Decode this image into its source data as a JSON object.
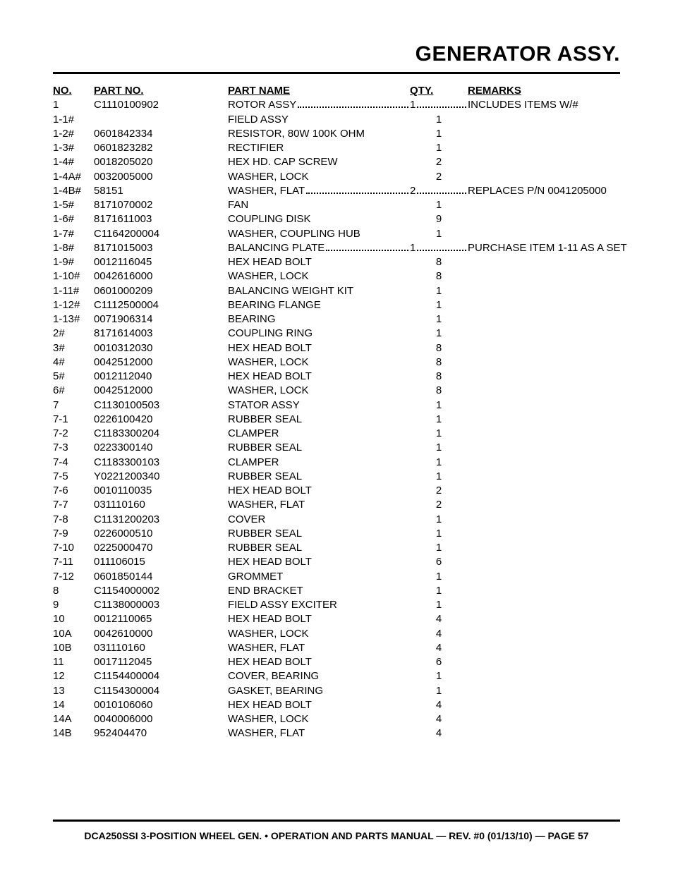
{
  "title": "GENERATOR ASSY.",
  "headers": {
    "no": "NO.",
    "partNo": "PART NO.",
    "partName": "PART NAME",
    "qty": "QTY.",
    "remarks": "REMARKS"
  },
  "footer": "DCA250SSI 3-POSITION WHEEL GEN. • OPERATION AND PARTS MANUAL — REV. #0 (01/13/10) — PAGE 57",
  "rows": [
    {
      "no": "1",
      "partNo": "C1110100902",
      "name": "ROTOR ASSY",
      "qty": "1",
      "remarks": "INCLUDES ITEMS W/#",
      "leader": true
    },
    {
      "no": "1-1#",
      "partNo": "",
      "name": "FIELD ASSY",
      "qty": "1",
      "remarks": ""
    },
    {
      "no": "1-2#",
      "partNo": "0601842334",
      "name": "RESISTOR, 80W 100K OHM",
      "qty": "1",
      "remarks": ""
    },
    {
      "no": "1-3#",
      "partNo": "0601823282",
      "name": "RECTIFIER",
      "qty": "1",
      "remarks": ""
    },
    {
      "no": "1-4#",
      "partNo": "0018205020",
      "name": "HEX HD. CAP SCREW",
      "qty": "2",
      "remarks": ""
    },
    {
      "no": "1-4A#",
      "partNo": "0032005000",
      "name": "WASHER, LOCK",
      "qty": "2",
      "remarks": ""
    },
    {
      "no": "1-4B#",
      "partNo": "58151",
      "name": "WASHER, FLAT",
      "qty": "2",
      "remarks": "REPLACES P/N 0041205000",
      "leader": true
    },
    {
      "no": "1-5#",
      "partNo": "8171070002",
      "name": "FAN",
      "qty": "1",
      "remarks": ""
    },
    {
      "no": "1-6#",
      "partNo": "8171611003",
      "name": "COUPLING DISK",
      "qty": "9",
      "remarks": ""
    },
    {
      "no": "1-7#",
      "partNo": "C1164200004",
      "name": "WASHER, COUPLING HUB",
      "qty": "1",
      "remarks": ""
    },
    {
      "no": "1-8#",
      "partNo": "8171015003",
      "name": "BALANCING PLATE",
      "qty": "1",
      "remarks": "PURCHASE ITEM 1-11 AS A SET",
      "leader": true
    },
    {
      "no": "1-9#",
      "partNo": "0012116045",
      "name": "HEX HEAD BOLT",
      "qty": "8",
      "remarks": ""
    },
    {
      "no": "1-10#",
      "partNo": "0042616000",
      "name": "WASHER, LOCK",
      "qty": "8",
      "remarks": ""
    },
    {
      "no": "1-11#",
      "partNo": "0601000209",
      "name": "BALANCING WEIGHT KIT",
      "qty": "1",
      "remarks": ""
    },
    {
      "no": "1-12#",
      "partNo": "C1112500004",
      "name": "BEARING FLANGE",
      "qty": "1",
      "remarks": ""
    },
    {
      "no": "1-13#",
      "partNo": "0071906314",
      "name": "BEARING",
      "qty": "1",
      "remarks": ""
    },
    {
      "no": "2#",
      "partNo": "8171614003",
      "name": "COUPLING RING",
      "qty": "1",
      "remarks": ""
    },
    {
      "no": "3#",
      "partNo": "0010312030",
      "name": "HEX HEAD BOLT",
      "qty": "8",
      "remarks": ""
    },
    {
      "no": "4#",
      "partNo": "0042512000",
      "name": "WASHER, LOCK",
      "qty": "8",
      "remarks": ""
    },
    {
      "no": "5#",
      "partNo": "0012112040",
      "name": "HEX HEAD BOLT",
      "qty": "8",
      "remarks": ""
    },
    {
      "no": "6#",
      "partNo": "0042512000",
      "name": "WASHER, LOCK",
      "qty": "8",
      "remarks": ""
    },
    {
      "no": "7",
      "partNo": "C1130100503",
      "name": "STATOR ASSY",
      "qty": "1",
      "remarks": ""
    },
    {
      "no": "7-1",
      "partNo": "0226100420",
      "name": "RUBBER SEAL",
      "qty": "1",
      "remarks": ""
    },
    {
      "no": "7-2",
      "partNo": "C1183300204",
      "name": "CLAMPER",
      "qty": "1",
      "remarks": ""
    },
    {
      "no": "7-3",
      "partNo": "0223300140",
      "name": "RUBBER SEAL",
      "qty": "1",
      "remarks": ""
    },
    {
      "no": "7-4",
      "partNo": "C1183300103",
      "name": "CLAMPER",
      "qty": "1",
      "remarks": ""
    },
    {
      "no": "7-5",
      "partNo": "Y0221200340",
      "name": "RUBBER SEAL",
      "qty": "1",
      "remarks": ""
    },
    {
      "no": "7-6",
      "partNo": "0010110035",
      "name": "HEX HEAD BOLT",
      "qty": "2",
      "remarks": ""
    },
    {
      "no": "7-7",
      "partNo": "031110160",
      "name": "WASHER, FLAT",
      "qty": "2",
      "remarks": ""
    },
    {
      "no": "7-8",
      "partNo": "C1131200203",
      "name": "COVER",
      "qty": "1",
      "remarks": ""
    },
    {
      "no": "7-9",
      "partNo": "0226000510",
      "name": "RUBBER SEAL",
      "qty": "1",
      "remarks": ""
    },
    {
      "no": "7-10",
      "partNo": "0225000470",
      "name": "RUBBER SEAL",
      "qty": "1",
      "remarks": ""
    },
    {
      "no": "7-11",
      "partNo": "011106015",
      "name": "HEX HEAD BOLT",
      "qty": "6",
      "remarks": ""
    },
    {
      "no": "7-12",
      "partNo": "0601850144",
      "name": "GROMMET",
      "qty": "1",
      "remarks": ""
    },
    {
      "no": "8",
      "partNo": "C1154000002",
      "name": "END BRACKET",
      "qty": "1",
      "remarks": ""
    },
    {
      "no": "9",
      "partNo": "C1138000003",
      "name": "FIELD ASSY EXCITER",
      "qty": "1",
      "remarks": ""
    },
    {
      "no": "10",
      "partNo": "0012110065",
      "name": "HEX HEAD BOLT",
      "qty": "4",
      "remarks": ""
    },
    {
      "no": "10A",
      "partNo": "0042610000",
      "name": "WASHER, LOCK",
      "qty": "4",
      "remarks": ""
    },
    {
      "no": "10B",
      "partNo": "031110160",
      "name": "WASHER, FLAT",
      "qty": "4",
      "remarks": ""
    },
    {
      "no": "11",
      "partNo": "0017112045",
      "name": "HEX HEAD BOLT",
      "qty": "6",
      "remarks": ""
    },
    {
      "no": "12",
      "partNo": "C1154400004",
      "name": "COVER, BEARING",
      "qty": "1",
      "remarks": ""
    },
    {
      "no": "13",
      "partNo": "C1154300004",
      "name": "GASKET, BEARING",
      "qty": "1",
      "remarks": ""
    },
    {
      "no": "14",
      "partNo": "0010106060",
      "name": "HEX HEAD BOLT",
      "qty": "4",
      "remarks": ""
    },
    {
      "no": "14A",
      "partNo": "0040006000",
      "name": "WASHER, LOCK",
      "qty": "4",
      "remarks": ""
    },
    {
      "no": "14B",
      "partNo": "952404470",
      "name": "WASHER, FLAT",
      "qty": "4",
      "remarks": ""
    }
  ]
}
